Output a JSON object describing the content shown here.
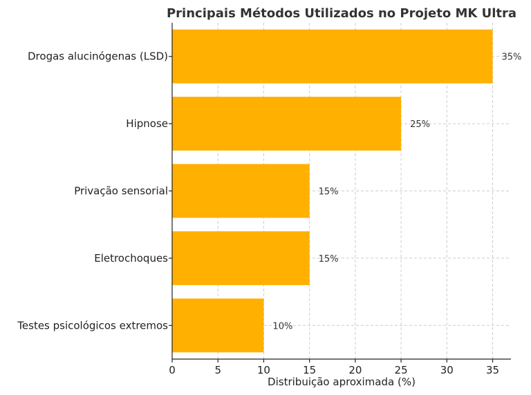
{
  "chart_data": {
    "type": "bar",
    "orientation": "horizontal",
    "title": "Principais Métodos Utilizados no Projeto MK Ultra",
    "xlabel": "Distribuição aproximada (%)",
    "ylabel": "",
    "categories": [
      "Drogas alucinógenas (LSD)",
      "Hipnose",
      "Privação sensorial",
      "Eletrochoques",
      "Testes psicológicos extremos"
    ],
    "values": [
      35,
      25,
      15,
      15,
      10
    ],
    "data_labels": [
      "35%",
      "25%",
      "15%",
      "15%",
      "10%"
    ],
    "xlim": [
      0,
      37
    ],
    "xticks": [
      0,
      5,
      10,
      15,
      20,
      25,
      30,
      35
    ],
    "grid": true,
    "legend": "none",
    "bar_color": "#FFB000"
  }
}
